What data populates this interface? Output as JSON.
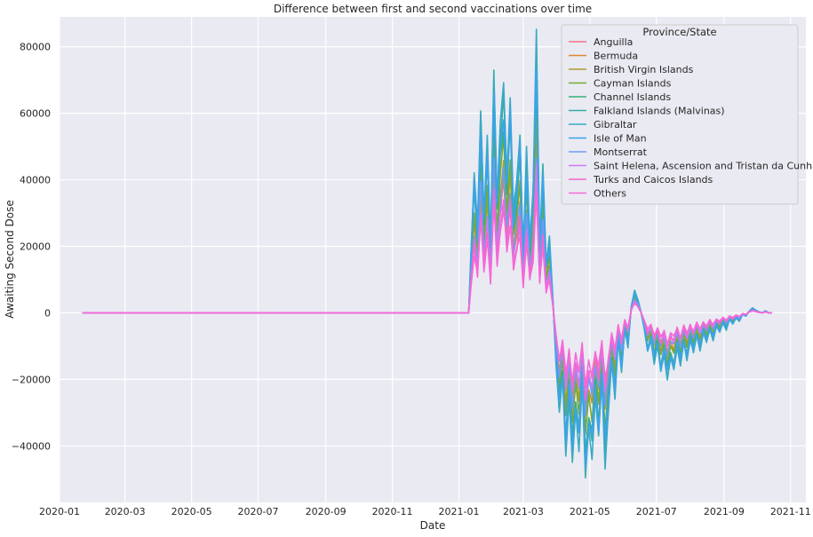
{
  "chart_data": {
    "type": "line",
    "title": "Difference between first and second vaccinations over time",
    "xlabel": "Date",
    "ylabel": "Awaiting Second Dose",
    "xlim": [
      "2020-01-01",
      "2021-11-15"
    ],
    "ylim": [
      -57000,
      89000
    ],
    "x_ticks": [
      "2020-01",
      "2020-03",
      "2020-05",
      "2020-07",
      "2020-09",
      "2020-11",
      "2021-01",
      "2021-03",
      "2021-05",
      "2021-07",
      "2021-09",
      "2021-11"
    ],
    "y_ticks": [
      -40000,
      -20000,
      0,
      20000,
      40000,
      60000,
      80000
    ],
    "y_tick_labels": [
      "−40000",
      "−20000",
      "0",
      "20000",
      "40000",
      "60000",
      "80000"
    ],
    "grid": true,
    "legend_position": "top-right",
    "legend_title": "Province/State",
    "series": [
      {
        "name": "Anguilla",
        "color": "#f77189",
        "scale": 0.55
      },
      {
        "name": "Bermuda",
        "color": "#dc8932",
        "scale": 0.62
      },
      {
        "name": "British Virgin Islands",
        "color": "#ae9d31",
        "scale": 0.68
      },
      {
        "name": "Cayman Islands",
        "color": "#77ab31",
        "scale": 0.74
      },
      {
        "name": "Channel Islands",
        "color": "#33b07a",
        "scale": 0.85
      },
      {
        "name": "Falkland Islands (Malvinas)",
        "color": "#36ada4",
        "scale": 0.95
      },
      {
        "name": "Gibraltar",
        "color": "#38a9c5",
        "scale": 1.0
      },
      {
        "name": "Isle of Man",
        "color": "#3ba3ec",
        "scale": 0.9
      },
      {
        "name": "Montserrat",
        "color": "#6e9bf4",
        "scale": 0.6
      },
      {
        "name": "Saint Helena, Ascension and Tristan da Cunha",
        "color": "#cc7af4",
        "scale": 0.5
      },
      {
        "name": "Turks and Caicos Islands",
        "color": "#f565cc",
        "scale": 0.48
      },
      {
        "name": "Others",
        "color": "#f668d8",
        "scale": 0.45
      }
    ],
    "base_series": {
      "x": [
        "2020-01-22",
        "2021-01-10",
        "2021-01-12",
        "2021-01-15",
        "2021-01-18",
        "2021-01-21",
        "2021-01-24",
        "2021-01-27",
        "2021-01-30",
        "2021-02-02",
        "2021-02-05",
        "2021-02-08",
        "2021-02-11",
        "2021-02-14",
        "2021-02-17",
        "2021-02-20",
        "2021-02-23",
        "2021-02-26",
        "2021-03-01",
        "2021-03-04",
        "2021-03-07",
        "2021-03-10",
        "2021-03-13",
        "2021-03-16",
        "2021-03-19",
        "2021-03-22",
        "2021-03-25",
        "2021-03-28",
        "2021-03-31",
        "2021-04-03",
        "2021-04-06",
        "2021-04-09",
        "2021-04-12",
        "2021-04-15",
        "2021-04-18",
        "2021-04-21",
        "2021-04-24",
        "2021-04-27",
        "2021-04-30",
        "2021-05-03",
        "2021-05-06",
        "2021-05-09",
        "2021-05-12",
        "2021-05-15",
        "2021-05-18",
        "2021-05-21",
        "2021-05-24",
        "2021-05-27",
        "2021-05-30",
        "2021-06-02",
        "2021-06-05",
        "2021-06-08",
        "2021-06-11",
        "2021-06-14",
        "2021-06-17",
        "2021-06-20",
        "2021-06-23",
        "2021-06-26",
        "2021-06-29",
        "2021-07-02",
        "2021-07-05",
        "2021-07-08",
        "2021-07-11",
        "2021-07-14",
        "2021-07-17",
        "2021-07-20",
        "2021-07-23",
        "2021-07-26",
        "2021-07-29",
        "2021-08-01",
        "2021-08-04",
        "2021-08-07",
        "2021-08-10",
        "2021-08-13",
        "2021-08-16",
        "2021-08-19",
        "2021-08-22",
        "2021-08-25",
        "2021-08-28",
        "2021-08-31",
        "2021-09-03",
        "2021-09-06",
        "2021-09-09",
        "2021-09-12",
        "2021-09-15",
        "2021-09-18",
        "2021-09-21",
        "2021-09-24",
        "2021-09-27",
        "2021-09-30",
        "2021-10-03",
        "2021-10-06",
        "2021-10-09",
        "2021-10-12",
        "2021-10-15"
      ],
      "y": [
        0,
        0,
        18000,
        42000,
        25000,
        61000,
        30000,
        52000,
        20000,
        73000,
        35000,
        55000,
        68000,
        42000,
        65000,
        30000,
        40000,
        55000,
        18000,
        48000,
        22000,
        38000,
        82000,
        20000,
        45000,
        15000,
        22000,
        5000,
        -15000,
        -30000,
        -20000,
        -42000,
        -25000,
        -45000,
        -30000,
        -40000,
        -20000,
        -50000,
        -35000,
        -42000,
        -25000,
        -38000,
        -20000,
        -45000,
        -30000,
        -15000,
        -25000,
        -8000,
        -18000,
        -5000,
        -10000,
        2000,
        6500,
        4000,
        0,
        -5000,
        -12000,
        -8000,
        -15000,
        -10000,
        -18000,
        -12000,
        -20000,
        -14000,
        -17000,
        -10000,
        -16000,
        -9000,
        -14000,
        -8000,
        -12000,
        -7000,
        -11000,
        -6000,
        -9000,
        -5000,
        -8000,
        -4000,
        -6000,
        -3000,
        -5000,
        -2000,
        -3500,
        -1500,
        -2500,
        -500,
        -1000,
        500,
        1500,
        800,
        300,
        0,
        600,
        0,
        0
      ]
    }
  }
}
